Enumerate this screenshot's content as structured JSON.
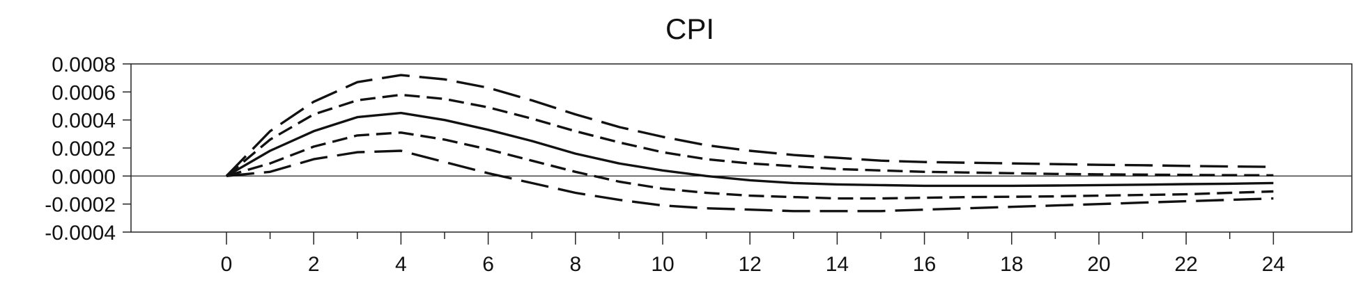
{
  "chart_data": {
    "type": "line",
    "title": "CPI",
    "xlabel": "",
    "ylabel": "",
    "xlim": [
      -2.5,
      27
    ],
    "ylim": [
      -0.0004,
      0.0008
    ],
    "x_ticks": [
      "0",
      "2",
      "4",
      "6",
      "8",
      "10",
      "12",
      "14",
      "16",
      "18",
      "20",
      "22",
      "24"
    ],
    "y_ticks": [
      "0.0008",
      "0.0006",
      "0.0004",
      "0.0002",
      "0.0000",
      "-0.0002",
      "-0.0004"
    ],
    "grid": false,
    "legend": "none",
    "zero_line": true,
    "x": [
      0,
      1,
      2,
      3,
      4,
      5,
      6,
      7,
      8,
      9,
      10,
      11,
      12,
      13,
      14,
      15,
      16,
      17,
      18,
      19,
      20,
      21,
      22,
      23,
      24
    ],
    "series": [
      {
        "style": "dashed-long",
        "values": [
          0.0,
          0.00032,
          0.00053,
          0.00067,
          0.00072,
          0.00069,
          0.00063,
          0.00054,
          0.00044,
          0.00035,
          0.00028,
          0.00022,
          0.00018,
          0.00015,
          0.00013,
          0.00011,
          0.0001,
          9.5e-05,
          9e-05,
          8.5e-05,
          8e-05,
          7.7e-05,
          7.2e-05,
          6.8e-05,
          6.5e-05
        ]
      },
      {
        "style": "dashed-short",
        "values": [
          0.0,
          0.00026,
          0.00044,
          0.00054,
          0.00058,
          0.00055,
          0.00049,
          0.00041,
          0.00032,
          0.00024,
          0.00017,
          0.00012,
          9e-05,
          7e-05,
          5e-05,
          4e-05,
          3e-05,
          2.5e-05,
          2e-05,
          1.5e-05,
          1.2e-05,
          1e-05,
          8e-06,
          6e-06,
          5e-06
        ]
      },
      {
        "style": "solid",
        "values": [
          0.0,
          0.00018,
          0.00032,
          0.00042,
          0.00045,
          0.0004,
          0.00033,
          0.00025,
          0.00016,
          9e-05,
          4e-05,
          0.0,
          -3e-05,
          -5e-05,
          -6e-05,
          -6.5e-05,
          -7e-05,
          -7e-05,
          -7e-05,
          -6.8e-05,
          -6.5e-05,
          -6.2e-05,
          -5.8e-05,
          -5.5e-05,
          -5e-05
        ]
      },
      {
        "style": "dashed-short",
        "values": [
          0.0,
          9e-05,
          0.00021,
          0.00029,
          0.00031,
          0.00026,
          0.00019,
          0.00011,
          3e-05,
          -4e-05,
          -9e-05,
          -0.00012,
          -0.00014,
          -0.00015,
          -0.00016,
          -0.00016,
          -0.000155,
          -0.00015,
          -0.000148,
          -0.000145,
          -0.00014,
          -0.000135,
          -0.00013,
          -0.00012,
          -0.00011
        ]
      },
      {
        "style": "dashed-long",
        "values": [
          0.0,
          3e-05,
          0.00012,
          0.00017,
          0.00018,
          0.0001,
          2e-05,
          -5e-05,
          -0.00012,
          -0.00017,
          -0.00021,
          -0.00023,
          -0.00024,
          -0.00025,
          -0.00025,
          -0.00025,
          -0.00024,
          -0.00023,
          -0.00022,
          -0.00021,
          -0.0002,
          -0.00019,
          -0.00018,
          -0.00017,
          -0.00016
        ]
      }
    ]
  }
}
